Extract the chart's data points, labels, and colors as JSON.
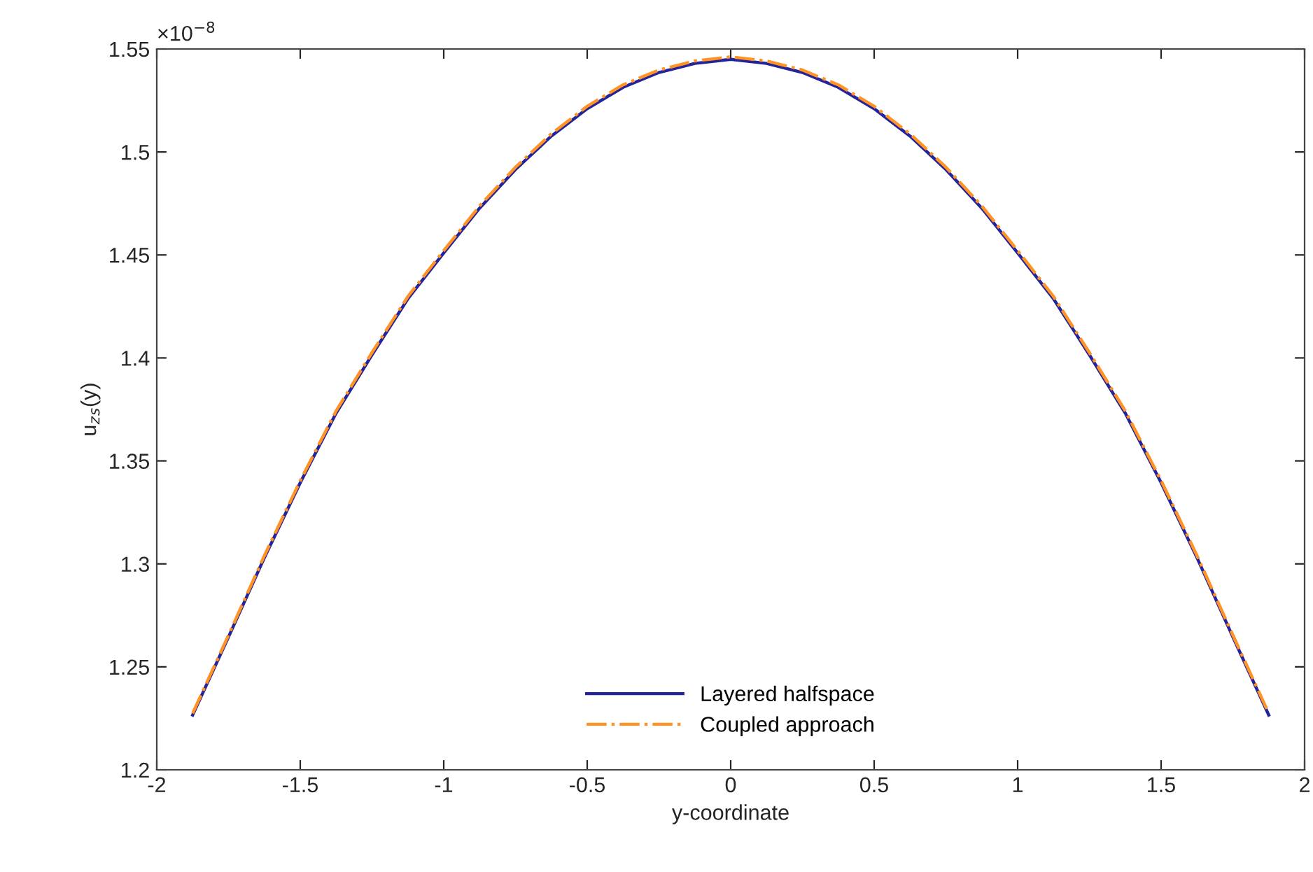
{
  "chart_data": {
    "type": "line",
    "xlabel": "y-coordinate",
    "ylabel": "u$_{z}$$_{s}$(y)",
    "annotations": [
      "×10$^{−8}$"
    ],
    "x": [
      -1.875,
      -1.75,
      -1.625,
      -1.5,
      -1.375,
      -1.25,
      -1.125,
      -1.0,
      -0.875,
      -0.75,
      -0.625,
      -0.5,
      -0.375,
      -0.25,
      -0.125,
      0,
      0.125,
      0.25,
      0.375,
      0.5,
      0.625,
      0.75,
      0.875,
      1.0,
      1.125,
      1.25,
      1.375,
      1.5,
      1.625,
      1.75,
      1.875
    ],
    "series": [
      {
        "name": "Layered halfspace",
        "color": "#23239b",
        "line_style": "solid",
        "values": [
          1.2266,
          1.2645,
          1.303,
          1.3394,
          1.3732,
          1.4015,
          1.4287,
          1.451,
          1.4727,
          1.4915,
          1.5077,
          1.521,
          1.5314,
          1.5386,
          1.543,
          1.545,
          1.543,
          1.5386,
          1.5314,
          1.521,
          1.5077,
          1.4915,
          1.4727,
          1.451,
          1.4287,
          1.4015,
          1.3732,
          1.3394,
          1.303,
          1.2645,
          1.2266
        ]
      },
      {
        "name": "Coupled approach",
        "color": "#ff9326",
        "line_style": "dashdot",
        "values": [
          1.2274,
          1.2654,
          1.304,
          1.3404,
          1.3743,
          1.4026,
          1.4298,
          1.4521,
          1.4738,
          1.4926,
          1.5088,
          1.5222,
          1.5326,
          1.5398,
          1.5442,
          1.5462,
          1.5442,
          1.5398,
          1.5326,
          1.5222,
          1.5088,
          1.4926,
          1.4738,
          1.4521,
          1.4298,
          1.4026,
          1.3743,
          1.3404,
          1.304,
          1.2654,
          1.2274
        ]
      }
    ],
    "xlim": [
      -2,
      2
    ],
    "xticks": [
      -2,
      -1.5,
      -1,
      -0.5,
      0,
      0.5,
      1,
      1.5,
      2
    ],
    "ylim": [
      1.2,
      1.55
    ],
    "yticks": [
      1.2,
      1.25,
      1.3,
      1.35,
      1.4,
      1.45,
      1.5,
      1.55
    ],
    "grid": false,
    "legend": "bottom"
  }
}
